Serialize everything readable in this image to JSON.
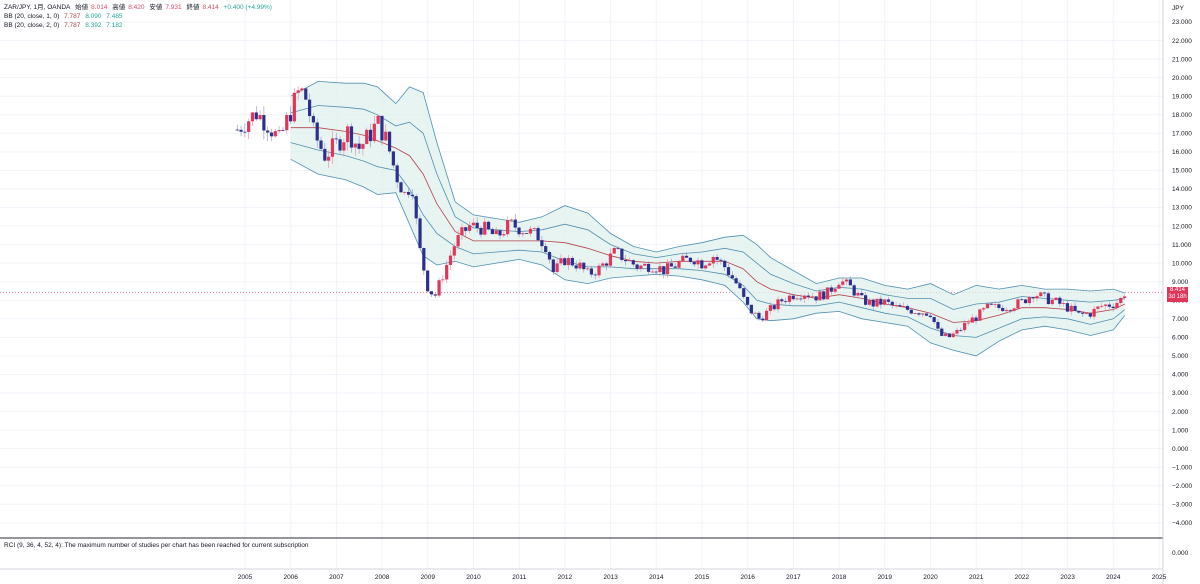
{
  "legend": {
    "symbol_line": "ZAR/JPY, 1月, OANDA",
    "open_label": "始値",
    "open": "8.014",
    "high_label": "高値",
    "high": "8.420",
    "low_label": "安値",
    "low": "7.931",
    "close_label": "終値",
    "close": "8.414",
    "change": "+0.400 (+4.99%)",
    "bb1_label": "BB (20, close, 1, 0)",
    "bb1_basis": "7.787",
    "bb1_upper": "8.090",
    "bb1_lower": "7.485",
    "bb2_label": "BB (20, close, 2, 0)",
    "bb2_basis": "7.787",
    "bb2_upper": "8.392",
    "bb2_lower": "7.182"
  },
  "rci_message": "RCI (9, 36, 4, 52, 4): The maximum number of studies per chart has been reached for current subscription",
  "price_tag": {
    "value": "8.414",
    "countdown": "3d 18h"
  },
  "rci_axis_label": "0.000",
  "colors": {
    "up": "#e0365a",
    "down": "#2b2f8e",
    "band": "#4f8fb0",
    "band_fill": "#dff0ec",
    "basis": "#b4424c"
  },
  "chart_data": {
    "type": "candlestick",
    "title": "ZAR/JPY, 1月, OANDA",
    "y_unit_label": "JPY",
    "y_ticks": [
      "23.000",
      "22.000",
      "21.000",
      "20.000",
      "19.000",
      "18.000",
      "17.000",
      "16.000",
      "15.000",
      "14.000",
      "13.000",
      "12.000",
      "11.000",
      "10.000",
      "9.000",
      "8.000",
      "7.000",
      "6.000",
      "5.000",
      "4.000",
      "3.000",
      "2.000",
      "1.000",
      "0.000",
      "−1.000",
      "−2.000",
      "−3.000",
      "−4.000"
    ],
    "x_ticks": [
      "2005",
      "2006",
      "2007",
      "2008",
      "2009",
      "2010",
      "2011",
      "2012",
      "2013",
      "2014",
      "2015",
      "2016",
      "2017",
      "2018",
      "2019",
      "2020",
      "2021",
      "2022",
      "2023",
      "2024",
      "2025"
    ],
    "ylim": [
      -4.7,
      23.6
    ],
    "last_close": 8.414,
    "series_close": [
      [
        2004.83,
        17.2
      ],
      [
        2005.0,
        17.6
      ],
      [
        2005.25,
        18.1
      ],
      [
        2005.5,
        17.5
      ],
      [
        2005.75,
        16.6
      ],
      [
        2006.0,
        18.2
      ],
      [
        2006.2,
        19.4
      ],
      [
        2006.35,
        18.8
      ],
      [
        2006.5,
        17.0
      ],
      [
        2006.75,
        15.8
      ],
      [
        2007.0,
        16.4
      ],
      [
        2007.25,
        17.1
      ],
      [
        2007.5,
        16.2
      ],
      [
        2007.75,
        17.0
      ],
      [
        2007.9,
        17.6
      ],
      [
        2008.1,
        16.6
      ],
      [
        2008.3,
        14.8
      ],
      [
        2008.5,
        13.7
      ],
      [
        2008.65,
        14.4
      ],
      [
        2008.8,
        11.0
      ],
      [
        2009.0,
        8.7
      ],
      [
        2009.15,
        8.2
      ],
      [
        2009.35,
        9.5
      ],
      [
        2009.6,
        11.1
      ],
      [
        2009.9,
        12.0
      ],
      [
        2010.2,
        11.9
      ],
      [
        2010.5,
        11.4
      ],
      [
        2010.8,
        12.1
      ],
      [
        2011.1,
        11.8
      ],
      [
        2011.4,
        11.5
      ],
      [
        2011.6,
        10.9
      ],
      [
        2011.75,
        9.5
      ],
      [
        2012.0,
        10.2
      ],
      [
        2012.3,
        9.9
      ],
      [
        2012.5,
        9.4
      ],
      [
        2012.75,
        9.7
      ],
      [
        2013.1,
        10.6
      ],
      [
        2013.4,
        10.1
      ],
      [
        2013.6,
        9.8
      ],
      [
        2013.9,
        9.9
      ],
      [
        2014.2,
        9.6
      ],
      [
        2014.5,
        10.0
      ],
      [
        2014.8,
        10.3
      ],
      [
        2015.0,
        10.0
      ],
      [
        2015.25,
        10.4
      ],
      [
        2015.5,
        9.8
      ],
      [
        2015.75,
        8.9
      ],
      [
        2016.0,
        7.6
      ],
      [
        2016.25,
        7.0
      ],
      [
        2016.5,
        7.5
      ],
      [
        2016.75,
        8.0
      ],
      [
        2017.0,
        8.3
      ],
      [
        2017.25,
        8.4
      ],
      [
        2017.5,
        8.2
      ],
      [
        2017.75,
        8.4
      ],
      [
        2018.0,
        9.1
      ],
      [
        2018.25,
        8.7
      ],
      [
        2018.5,
        8.0
      ],
      [
        2018.75,
        7.8
      ],
      [
        2019.0,
        7.9
      ],
      [
        2019.25,
        7.6
      ],
      [
        2019.5,
        7.5
      ],
      [
        2019.75,
        7.4
      ],
      [
        2020.0,
        7.3
      ],
      [
        2020.2,
        6.1
      ],
      [
        2020.4,
        6.0
      ],
      [
        2020.6,
        6.3
      ],
      [
        2020.8,
        6.8
      ],
      [
        2021.0,
        7.1
      ],
      [
        2021.25,
        7.6
      ],
      [
        2021.5,
        7.6
      ],
      [
        2021.75,
        7.7
      ],
      [
        2022.0,
        7.9
      ],
      [
        2022.25,
        8.4
      ],
      [
        2022.5,
        8.1
      ],
      [
        2022.75,
        7.9
      ],
      [
        2023.0,
        7.6
      ],
      [
        2023.25,
        7.2
      ],
      [
        2023.5,
        7.3
      ],
      [
        2023.75,
        7.7
      ],
      [
        2024.0,
        7.8
      ],
      [
        2024.15,
        8.0
      ],
      [
        2024.25,
        8.414
      ]
    ],
    "bb_upper_2sd": [
      [
        2006.0,
        19.0
      ],
      [
        2006.6,
        19.8
      ],
      [
        2007.2,
        19.7
      ],
      [
        2007.6,
        19.7
      ],
      [
        2007.9,
        19.5
      ],
      [
        2008.3,
        18.6
      ],
      [
        2008.6,
        19.5
      ],
      [
        2008.9,
        19.2
      ],
      [
        2009.2,
        16.5
      ],
      [
        2009.6,
        13.3
      ],
      [
        2010.0,
        12.6
      ],
      [
        2010.5,
        12.4
      ],
      [
        2011.0,
        12.2
      ],
      [
        2011.5,
        12.5
      ],
      [
        2012.0,
        13.1
      ],
      [
        2012.5,
        12.7
      ],
      [
        2013.0,
        11.6
      ],
      [
        2013.5,
        10.9
      ],
      [
        2014.0,
        10.6
      ],
      [
        2014.5,
        10.9
      ],
      [
        2015.0,
        11.1
      ],
      [
        2015.5,
        11.4
      ],
      [
        2015.9,
        11.5
      ],
      [
        2016.2,
        11.0
      ],
      [
        2016.5,
        10.3
      ],
      [
        2017.0,
        9.6
      ],
      [
        2017.5,
        8.9
      ],
      [
        2018.0,
        9.2
      ],
      [
        2018.5,
        9.2
      ],
      [
        2019.0,
        8.8
      ],
      [
        2019.5,
        8.6
      ],
      [
        2020.0,
        8.9
      ],
      [
        2020.5,
        8.3
      ],
      [
        2021.0,
        8.8
      ],
      [
        2021.5,
        8.6
      ],
      [
        2022.0,
        8.8
      ],
      [
        2022.5,
        8.6
      ],
      [
        2023.0,
        8.6
      ],
      [
        2023.5,
        8.5
      ],
      [
        2024.0,
        8.6
      ],
      [
        2024.25,
        8.39
      ]
    ],
    "bb_upper_1sd": [
      [
        2006.0,
        18.1
      ],
      [
        2006.6,
        18.5
      ],
      [
        2007.2,
        18.4
      ],
      [
        2007.6,
        18.3
      ],
      [
        2007.9,
        18.0
      ],
      [
        2008.3,
        17.4
      ],
      [
        2008.6,
        17.6
      ],
      [
        2008.9,
        17.0
      ],
      [
        2009.2,
        14.8
      ],
      [
        2009.6,
        12.5
      ],
      [
        2010.0,
        11.9
      ],
      [
        2010.5,
        11.8
      ],
      [
        2011.0,
        11.7
      ],
      [
        2011.5,
        11.8
      ],
      [
        2012.0,
        12.1
      ],
      [
        2012.5,
        11.8
      ],
      [
        2013.0,
        11.0
      ],
      [
        2013.5,
        10.5
      ],
      [
        2014.0,
        10.3
      ],
      [
        2014.5,
        10.5
      ],
      [
        2015.0,
        10.6
      ],
      [
        2015.5,
        10.8
      ],
      [
        2015.9,
        10.6
      ],
      [
        2016.2,
        10.0
      ],
      [
        2016.5,
        9.4
      ],
      [
        2017.0,
        8.9
      ],
      [
        2017.5,
        8.5
      ],
      [
        2018.0,
        8.7
      ],
      [
        2018.5,
        8.6
      ],
      [
        2019.0,
        8.3
      ],
      [
        2019.5,
        8.1
      ],
      [
        2020.0,
        8.1
      ],
      [
        2020.5,
        7.5
      ],
      [
        2021.0,
        7.8
      ],
      [
        2021.5,
        7.9
      ],
      [
        2022.0,
        8.2
      ],
      [
        2022.5,
        8.1
      ],
      [
        2023.0,
        8.0
      ],
      [
        2023.5,
        7.9
      ],
      [
        2024.0,
        8.0
      ],
      [
        2024.25,
        8.09
      ]
    ],
    "bb_basis": [
      [
        2006.0,
        17.3
      ],
      [
        2006.6,
        17.3
      ],
      [
        2007.2,
        17.1
      ],
      [
        2007.6,
        16.9
      ],
      [
        2007.9,
        16.6
      ],
      [
        2008.3,
        16.2
      ],
      [
        2008.6,
        15.8
      ],
      [
        2008.9,
        14.8
      ],
      [
        2009.2,
        13.2
      ],
      [
        2009.6,
        11.7
      ],
      [
        2010.0,
        11.2
      ],
      [
        2010.5,
        11.2
      ],
      [
        2011.0,
        11.2
      ],
      [
        2011.5,
        11.2
      ],
      [
        2012.0,
        11.1
      ],
      [
        2012.5,
        10.8
      ],
      [
        2013.0,
        10.4
      ],
      [
        2013.5,
        10.1
      ],
      [
        2014.0,
        10.0
      ],
      [
        2014.5,
        10.1
      ],
      [
        2015.0,
        10.1
      ],
      [
        2015.5,
        10.1
      ],
      [
        2015.9,
        9.7
      ],
      [
        2016.2,
        9.0
      ],
      [
        2016.5,
        8.6
      ],
      [
        2017.0,
        8.3
      ],
      [
        2017.5,
        8.1
      ],
      [
        2018.0,
        8.3
      ],
      [
        2018.5,
        8.1
      ],
      [
        2019.0,
        7.8
      ],
      [
        2019.5,
        7.6
      ],
      [
        2020.0,
        7.3
      ],
      [
        2020.5,
        6.8
      ],
      [
        2021.0,
        6.9
      ],
      [
        2021.5,
        7.2
      ],
      [
        2022.0,
        7.6
      ],
      [
        2022.5,
        7.6
      ],
      [
        2023.0,
        7.5
      ],
      [
        2023.5,
        7.3
      ],
      [
        2024.0,
        7.5
      ],
      [
        2024.25,
        7.79
      ]
    ],
    "bb_lower_1sd": [
      [
        2006.0,
        16.5
      ],
      [
        2006.6,
        16.1
      ],
      [
        2007.2,
        15.8
      ],
      [
        2007.6,
        15.5
      ],
      [
        2007.9,
        15.2
      ],
      [
        2008.3,
        15.0
      ],
      [
        2008.6,
        14.0
      ],
      [
        2008.9,
        12.6
      ],
      [
        2009.2,
        11.6
      ],
      [
        2009.6,
        10.9
      ],
      [
        2010.0,
        10.5
      ],
      [
        2010.5,
        10.6
      ],
      [
        2011.0,
        10.7
      ],
      [
        2011.5,
        10.6
      ],
      [
        2012.0,
        10.1
      ],
      [
        2012.5,
        9.8
      ],
      [
        2013.0,
        9.8
      ],
      [
        2013.5,
        9.7
      ],
      [
        2014.0,
        9.7
      ],
      [
        2014.5,
        9.7
      ],
      [
        2015.0,
        9.6
      ],
      [
        2015.5,
        9.4
      ],
      [
        2015.9,
        8.8
      ],
      [
        2016.2,
        8.0
      ],
      [
        2016.5,
        7.8
      ],
      [
        2017.0,
        7.7
      ],
      [
        2017.5,
        7.7
      ],
      [
        2018.0,
        7.9
      ],
      [
        2018.5,
        7.6
      ],
      [
        2019.0,
        7.3
      ],
      [
        2019.5,
        7.1
      ],
      [
        2020.0,
        6.5
      ],
      [
        2020.5,
        6.1
      ],
      [
        2021.0,
        6.0
      ],
      [
        2021.5,
        6.5
      ],
      [
        2022.0,
        7.0
      ],
      [
        2022.5,
        7.1
      ],
      [
        2023.0,
        7.0
      ],
      [
        2023.5,
        6.7
      ],
      [
        2024.0,
        7.0
      ],
      [
        2024.25,
        7.49
      ]
    ],
    "bb_lower_2sd": [
      [
        2006.0,
        15.6
      ],
      [
        2006.6,
        14.8
      ],
      [
        2007.2,
        14.5
      ],
      [
        2007.6,
        14.1
      ],
      [
        2007.9,
        13.7
      ],
      [
        2008.3,
        13.8
      ],
      [
        2008.6,
        12.1
      ],
      [
        2008.9,
        10.4
      ],
      [
        2009.2,
        9.9
      ],
      [
        2009.6,
        10.1
      ],
      [
        2010.0,
        9.8
      ],
      [
        2010.5,
        10.0
      ],
      [
        2011.0,
        10.2
      ],
      [
        2011.5,
        9.9
      ],
      [
        2012.0,
        9.1
      ],
      [
        2012.5,
        8.9
      ],
      [
        2013.0,
        9.2
      ],
      [
        2013.5,
        9.3
      ],
      [
        2014.0,
        9.4
      ],
      [
        2014.5,
        9.3
      ],
      [
        2015.0,
        9.1
      ],
      [
        2015.5,
        8.8
      ],
      [
        2015.9,
        7.9
      ],
      [
        2016.2,
        7.0
      ],
      [
        2016.5,
        6.9
      ],
      [
        2017.0,
        7.0
      ],
      [
        2017.5,
        7.3
      ],
      [
        2018.0,
        7.4
      ],
      [
        2018.5,
        7.0
      ],
      [
        2019.0,
        6.8
      ],
      [
        2019.5,
        6.6
      ],
      [
        2020.0,
        5.7
      ],
      [
        2020.5,
        5.3
      ],
      [
        2021.0,
        5.0
      ],
      [
        2021.5,
        5.8
      ],
      [
        2022.0,
        6.4
      ],
      [
        2022.5,
        6.6
      ],
      [
        2023.0,
        6.4
      ],
      [
        2023.5,
        6.1
      ],
      [
        2024.0,
        6.4
      ],
      [
        2024.25,
        7.18
      ]
    ]
  }
}
